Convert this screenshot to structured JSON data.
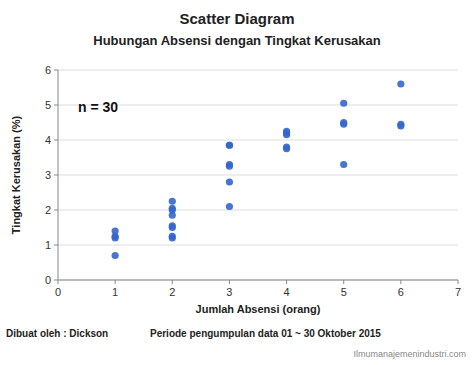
{
  "chart_data": {
    "type": "scatter",
    "title": "Scatter Diagram",
    "subtitle": "Hubungan Absensi dengan Tingkat Kerusakan",
    "x_label": "Jumlah Absensi (orang)",
    "y_label": "Tingkat Kerusakan (%)",
    "annotations": [
      "n = 30",
      "Dibuat oleh : Dickson",
      "Periode pengumpulan data 01 ~ 30 Oktober 2015",
      "Ilmumanajemenindustri.com"
    ],
    "x": [
      1,
      1,
      1,
      1,
      2,
      2,
      2,
      2,
      2,
      2,
      2,
      2,
      3,
      3,
      3,
      3,
      3,
      3,
      4,
      4,
      4,
      4,
      4,
      5,
      5,
      5,
      5,
      6,
      6,
      6
    ],
    "values": [
      0.7,
      1.2,
      1.25,
      1.4,
      1.2,
      1.25,
      1.5,
      1.55,
      1.85,
      2.0,
      2.05,
      2.25,
      2.1,
      2.8,
      3.25,
      3.3,
      3.85,
      3.85,
      3.75,
      3.8,
      4.15,
      4.2,
      4.25,
      3.3,
      4.45,
      4.5,
      5.05,
      4.4,
      4.45,
      5.6
    ],
    "color": "#3366CC",
    "xlim": [
      0,
      7
    ],
    "ylim": [
      0,
      6
    ],
    "xticks": [
      0,
      1,
      2,
      3,
      4,
      5,
      6,
      7
    ],
    "yticks": [
      0,
      1,
      2,
      3,
      4,
      5,
      6
    ],
    "grid": "y"
  }
}
